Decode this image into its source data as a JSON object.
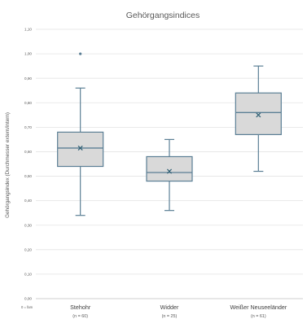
{
  "chart_data": {
    "type": "box",
    "title": "Gehörgangsindices",
    "ylabel": "Gehörgangsindex (Durchmesser extern/intern)",
    "ylim": [
      0,
      1.1
    ],
    "yticks": [
      "0,00",
      "0,10",
      "0,20",
      "0,30",
      "0,40",
      "0,50",
      "0,60",
      "0,70",
      "0,80",
      "0,90",
      "1,00",
      "1,10"
    ],
    "grid": true,
    "corner_label": "0 = fam",
    "groups": [
      {
        "label": "Stehohr",
        "sublabel": "(n = 60)",
        "min": 0.34,
        "q1": 0.54,
        "median": 0.615,
        "q3": 0.68,
        "max": 0.86,
        "mean": 0.615,
        "outliers": [
          1.0
        ]
      },
      {
        "label": "Widder",
        "sublabel": "(n = 25)",
        "min": 0.36,
        "q1": 0.48,
        "median": 0.515,
        "q3": 0.58,
        "max": 0.65,
        "mean": 0.52,
        "outliers": []
      },
      {
        "label": "Weißer Neuseeländer",
        "sublabel": "(n = 61)",
        "min": 0.52,
        "q1": 0.67,
        "median": 0.76,
        "q3": 0.84,
        "max": 0.95,
        "mean": 0.75,
        "outliers": []
      }
    ],
    "colors": {
      "box_fill": "#d9d9d9",
      "box_stroke": "#5b7f95",
      "mean_marker": "#2f5f74",
      "grid": "#e3e3e3"
    }
  }
}
